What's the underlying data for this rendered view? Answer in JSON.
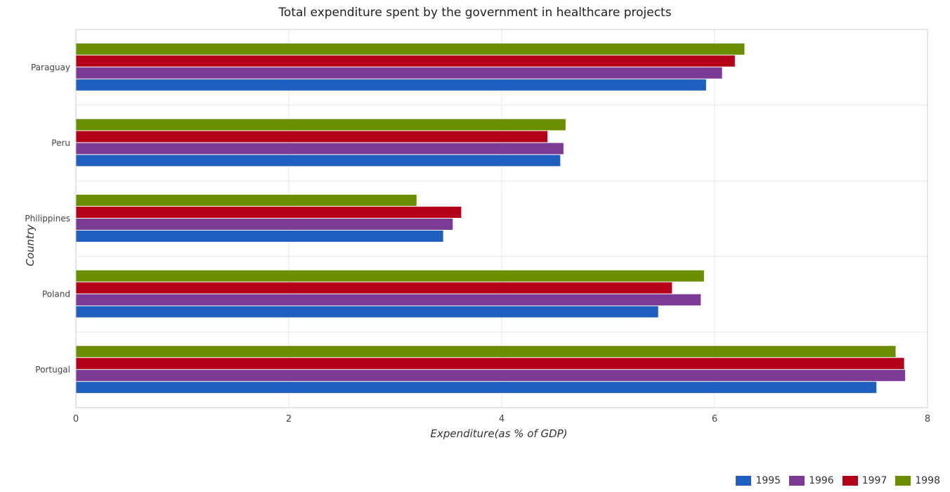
{
  "chart_data": {
    "type": "bar",
    "orientation": "horizontal",
    "title": "Total expenditure spent by the government in healthcare projects",
    "xlabel": "Expenditure(as % of GDP)",
    "ylabel": "Country",
    "categories": [
      "Paraguay",
      "Peru",
      "Philippines",
      "Poland",
      "Portugal"
    ],
    "series": [
      {
        "name": "1995",
        "color": "#1f5fbf",
        "values": [
          5.92,
          4.55,
          3.45,
          5.47,
          7.52
        ]
      },
      {
        "name": "1996",
        "color": "#7b3b94",
        "values": [
          6.07,
          4.58,
          3.54,
          5.87,
          7.79
        ]
      },
      {
        "name": "1997",
        "color": "#b5001a",
        "values": [
          6.19,
          4.43,
          3.62,
          5.6,
          7.78
        ]
      },
      {
        "name": "1998",
        "color": "#6b8e00",
        "values": [
          6.28,
          4.6,
          3.2,
          5.9,
          7.7
        ]
      }
    ],
    "xlim": [
      0,
      8
    ],
    "xticks": [
      "0",
      "2",
      "4",
      "6",
      "8"
    ],
    "grid": true,
    "legend_position": "bottom-right"
  }
}
